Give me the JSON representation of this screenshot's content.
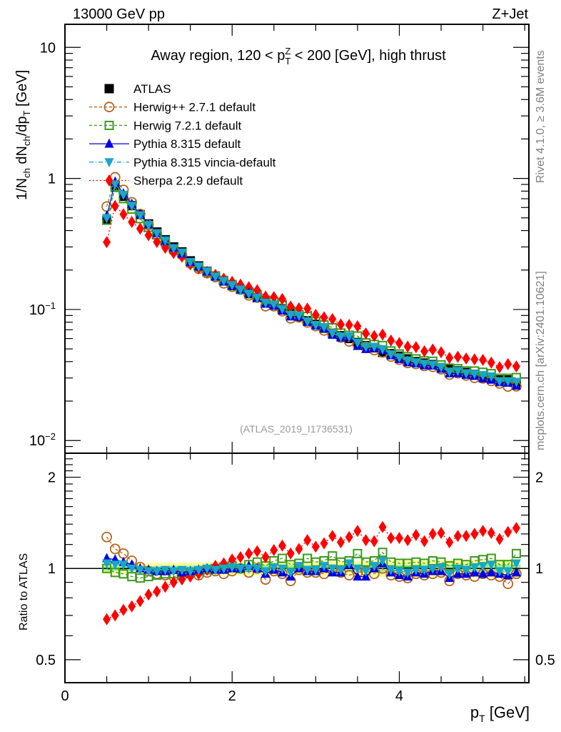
{
  "header": {
    "left": "13000 GeV pp",
    "right": "Z+Jet"
  },
  "side_labels": {
    "upper": "Rivet 4.1.0, ≥ 3.6M events",
    "lower": "mcplots.cern.ch [arXiv:2401.10621]"
  },
  "watermark": "(ATLAS_2019_I1736531)",
  "chart_data": [
    {
      "type": "scatter",
      "panel": "main",
      "title": "Away region, 120 < p_T^Z < 200 [GeV], high thrust",
      "xlabel": "p_T [GeV]",
      "ylabel": "1/N_ch dN_ch/dp_T [GeV]",
      "yscale": "log",
      "xlim": [
        0,
        5.55
      ],
      "ylim": [
        0.008,
        15
      ],
      "y_ticks": [
        {
          "value": 10,
          "label": "10"
        },
        {
          "value": 1,
          "label": "1"
        },
        {
          "value": 0.1,
          "label": "10^-1"
        },
        {
          "value": 0.01,
          "label": "10^-2"
        }
      ],
      "legend_position": "top-left",
      "x": [
        0.5,
        0.6,
        0.7,
        0.8,
        0.9,
        1.0,
        1.1,
        1.2,
        1.3,
        1.4,
        1.5,
        1.6,
        1.7,
        1.8,
        1.9,
        2.0,
        2.1,
        2.2,
        2.3,
        2.4,
        2.5,
        2.6,
        2.7,
        2.8,
        2.9,
        3.0,
        3.1,
        3.2,
        3.3,
        3.4,
        3.5,
        3.6,
        3.7,
        3.8,
        3.9,
        4.0,
        4.1,
        4.2,
        4.3,
        4.4,
        4.5,
        4.6,
        4.7,
        4.8,
        4.9,
        5.0,
        5.1,
        5.2,
        5.3,
        5.4
      ],
      "series": [
        {
          "name": "ATLAS",
          "color": "#000000",
          "marker": "square-filled",
          "line": "none",
          "values": [
            0.48,
            0.88,
            0.73,
            0.62,
            0.53,
            0.45,
            0.39,
            0.34,
            0.3,
            0.275,
            0.235,
            0.215,
            0.195,
            0.18,
            0.165,
            0.152,
            0.142,
            0.132,
            0.123,
            0.115,
            0.108,
            0.101,
            0.094,
            0.088,
            0.082,
            0.077,
            0.072,
            0.066,
            0.063,
            0.06,
            0.056,
            0.053,
            0.051,
            0.047,
            0.046,
            0.044,
            0.042,
            0.04,
            0.039,
            0.038,
            0.036,
            0.035,
            0.034,
            0.033,
            0.032,
            0.031,
            0.03,
            0.029,
            0.029,
            0.027
          ]
        },
        {
          "name": "Herwig++ 2.7.1 default",
          "color": "#b5651d",
          "marker": "circle-open",
          "line": "dashed",
          "ratio": [
            1.27,
            1.16,
            1.12,
            1.06,
            1.01,
            0.98,
            0.96,
            0.95,
            0.94,
            0.95,
            0.96,
            0.95,
            0.97,
            0.98,
            0.96,
            0.98,
            1.0,
            0.97,
            1.0,
            0.92,
            0.98,
            0.96,
            0.91,
            0.99,
            0.97,
            0.97,
            0.96,
            0.99,
            0.97,
            0.95,
            0.97,
            0.98,
            0.96,
            1.0,
            0.95,
            0.94,
            0.93,
            0.96,
            0.95,
            0.96,
            0.97,
            0.91,
            0.96,
            0.95,
            0.94,
            0.96,
            0.95,
            0.94,
            0.89,
            0.96
          ]
        },
        {
          "name": "Herwig 7.2.1 default",
          "color": "#3a9a1a",
          "marker": "square-open",
          "line": "dashed",
          "ratio": [
            1.0,
            0.97,
            0.96,
            0.94,
            0.93,
            0.94,
            0.95,
            0.96,
            0.96,
            0.97,
            0.97,
            0.98,
            0.99,
            1.0,
            1.01,
            1.02,
            1.0,
            1.03,
            1.05,
            1.02,
            1.06,
            1.08,
            1.03,
            1.04,
            1.08,
            1.05,
            1.06,
            1.1,
            1.05,
            1.06,
            1.12,
            1.05,
            1.06,
            1.13,
            1.05,
            1.04,
            1.04,
            1.05,
            1.04,
            1.06,
            1.05,
            1.02,
            1.04,
            1.03,
            1.06,
            1.07,
            1.08,
            1.03,
            1.03,
            1.12
          ]
        },
        {
          "name": "Pythia 8.315 default",
          "color": "#0000e0",
          "marker": "triangle-up-filled",
          "line": "solid",
          "ratio": [
            1.08,
            1.07,
            1.05,
            1.03,
            1.0,
            0.99,
            0.98,
            0.98,
            0.99,
            0.97,
            0.98,
            0.99,
            1.0,
            0.99,
            0.99,
            1.0,
            1.0,
            1.02,
            1.0,
            0.96,
            0.99,
            0.97,
            0.94,
            1.0,
            0.98,
            0.98,
            1.0,
            0.97,
            0.97,
            1.03,
            0.94,
            0.94,
            1.0,
            1.04,
            0.97,
            0.95,
            0.94,
            0.97,
            0.96,
            0.98,
            0.98,
            0.93,
            0.96,
            0.96,
            0.97,
            0.96,
            0.97,
            0.96,
            0.95,
            0.97
          ]
        },
        {
          "name": "Pythia 8.315 vincia-default",
          "color": "#1aa6c8",
          "marker": "triangle-down-filled",
          "line": "dashdot",
          "ratio": [
            1.04,
            1.03,
            1.03,
            1.0,
            0.99,
            0.98,
            0.98,
            0.99,
            0.98,
            0.99,
            0.98,
            0.99,
            1.0,
            0.99,
            1.0,
            1.01,
            1.0,
            1.0,
            1.0,
            0.98,
            1.01,
            1.0,
            0.97,
            1.02,
            0.99,
            0.99,
            1.02,
            1.0,
            0.99,
            1.04,
            1.0,
            0.98,
            1.02,
            1.06,
            0.99,
            0.98,
            0.97,
            0.99,
            0.99,
            1.0,
            1.01,
            0.96,
            1.0,
            0.99,
            1.01,
            1.02,
            1.03,
            0.98,
            0.98,
            1.04
          ]
        },
        {
          "name": "Sherpa 2.2.9 default",
          "color": "#ff0000",
          "marker": "diamond-filled",
          "line": "dotted",
          "ratio": [
            0.68,
            0.7,
            0.73,
            0.75,
            0.78,
            0.82,
            0.84,
            0.87,
            0.9,
            0.92,
            0.94,
            0.96,
            0.99,
            1.02,
            1.04,
            1.07,
            1.09,
            1.12,
            1.14,
            1.09,
            1.15,
            1.19,
            1.12,
            1.16,
            1.24,
            1.18,
            1.21,
            1.28,
            1.22,
            1.27,
            1.33,
            1.24,
            1.23,
            1.37,
            1.26,
            1.26,
            1.24,
            1.29,
            1.23,
            1.3,
            1.31,
            1.22,
            1.28,
            1.28,
            1.3,
            1.33,
            1.31,
            1.25,
            1.32,
            1.36
          ]
        }
      ]
    },
    {
      "type": "scatter",
      "panel": "ratio",
      "ylabel": "Ratio to ATLAS",
      "xlabel": "p_T [GeV]",
      "yscale": "log",
      "xlim": [
        0,
        5.55
      ],
      "ylim": [
        0.42,
        2.4
      ],
      "y_ticks": [
        {
          "value": 0.5,
          "label": "0.5"
        },
        {
          "value": 1,
          "label": "1"
        },
        {
          "value": 2,
          "label": "2"
        }
      ],
      "x_ticks": [
        {
          "value": 0,
          "label": "0"
        },
        {
          "value": 2,
          "label": "2"
        },
        {
          "value": 4,
          "label": "4"
        }
      ],
      "uncertainty_band": {
        "stat_color": "#99ee99",
        "total_color": "#ffff99",
        "stat_halfwidth": 0.02,
        "total_halfwidth": 0.045
      }
    }
  ]
}
